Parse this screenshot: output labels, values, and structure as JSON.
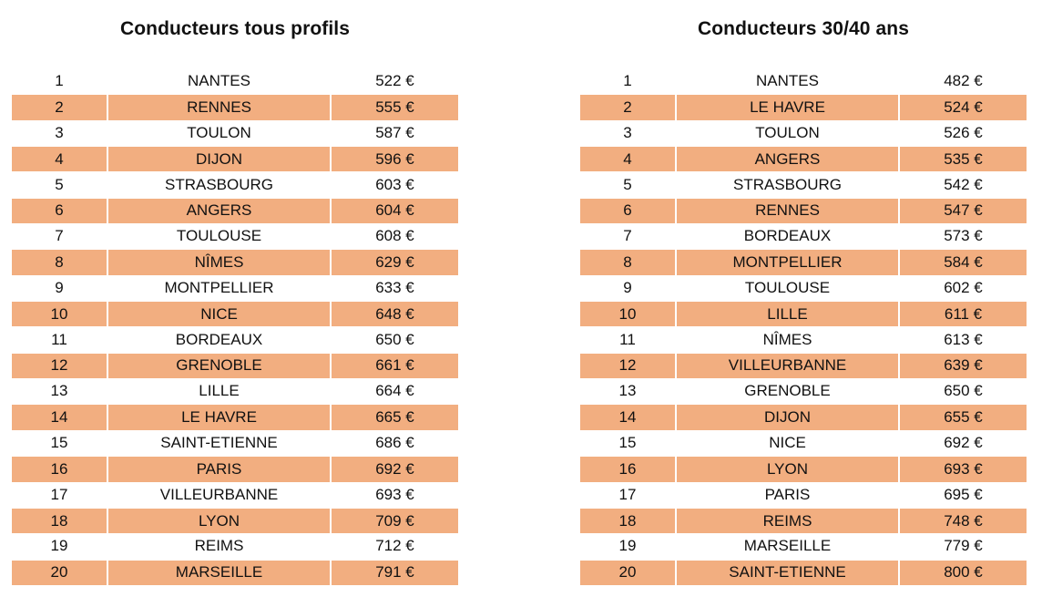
{
  "tables": [
    {
      "title": "Conducteurs tous profils",
      "rows": [
        {
          "rank": "1",
          "city": "NANTES",
          "price": "522 €"
        },
        {
          "rank": "2",
          "city": "RENNES",
          "price": "555 €"
        },
        {
          "rank": "3",
          "city": "TOULON",
          "price": "587 €"
        },
        {
          "rank": "4",
          "city": "DIJON",
          "price": "596 €"
        },
        {
          "rank": "5",
          "city": "STRASBOURG",
          "price": "603 €"
        },
        {
          "rank": "6",
          "city": "ANGERS",
          "price": "604 €"
        },
        {
          "rank": "7",
          "city": "TOULOUSE",
          "price": "608 €"
        },
        {
          "rank": "8",
          "city": "NÎMES",
          "price": "629 €"
        },
        {
          "rank": "9",
          "city": "MONTPELLIER",
          "price": "633 €"
        },
        {
          "rank": "10",
          "city": "NICE",
          "price": "648 €"
        },
        {
          "rank": "11",
          "city": "BORDEAUX",
          "price": "650 €"
        },
        {
          "rank": "12",
          "city": "GRENOBLE",
          "price": "661 €"
        },
        {
          "rank": "13",
          "city": "LILLE",
          "price": "664 €"
        },
        {
          "rank": "14",
          "city": "LE HAVRE",
          "price": "665 €"
        },
        {
          "rank": "15",
          "city": "SAINT-ETIENNE",
          "price": "686 €"
        },
        {
          "rank": "16",
          "city": "PARIS",
          "price": "692 €"
        },
        {
          "rank": "17",
          "city": "VILLEURBANNE",
          "price": "693 €"
        },
        {
          "rank": "18",
          "city": "LYON",
          "price": "709 €"
        },
        {
          "rank": "19",
          "city": "REIMS",
          "price": "712 €"
        },
        {
          "rank": "20",
          "city": "MARSEILLE",
          "price": "791 €"
        }
      ]
    },
    {
      "title": "Conducteurs 30/40 ans",
      "rows": [
        {
          "rank": "1",
          "city": "NANTES",
          "price": "482 €"
        },
        {
          "rank": "2",
          "city": "LE HAVRE",
          "price": "524 €"
        },
        {
          "rank": "3",
          "city": "TOULON",
          "price": "526 €"
        },
        {
          "rank": "4",
          "city": "ANGERS",
          "price": "535 €"
        },
        {
          "rank": "5",
          "city": "STRASBOURG",
          "price": "542 €"
        },
        {
          "rank": "6",
          "city": "RENNES",
          "price": "547 €"
        },
        {
          "rank": "7",
          "city": "BORDEAUX",
          "price": "573 €"
        },
        {
          "rank": "8",
          "city": "MONTPELLIER",
          "price": "584 €"
        },
        {
          "rank": "9",
          "city": "TOULOUSE",
          "price": "602 €"
        },
        {
          "rank": "10",
          "city": "LILLE",
          "price": "611 €"
        },
        {
          "rank": "11",
          "city": "NÎMES",
          "price": "613 €"
        },
        {
          "rank": "12",
          "city": "VILLEURBANNE",
          "price": "639 €"
        },
        {
          "rank": "13",
          "city": "GRENOBLE",
          "price": "650 €"
        },
        {
          "rank": "14",
          "city": "DIJON",
          "price": "655 €"
        },
        {
          "rank": "15",
          "city": "NICE",
          "price": "692 €"
        },
        {
          "rank": "16",
          "city": "LYON",
          "price": "693 €"
        },
        {
          "rank": "17",
          "city": "PARIS",
          "price": "695 €"
        },
        {
          "rank": "18",
          "city": "REIMS",
          "price": "748 €"
        },
        {
          "rank": "19",
          "city": "MARSEILLE",
          "price": "779 €"
        },
        {
          "rank": "20",
          "city": "SAINT-ETIENNE",
          "price": "800 €"
        }
      ]
    }
  ],
  "colors": {
    "band": "#f2ae80",
    "background": "#ffffff",
    "text": "#111111"
  }
}
